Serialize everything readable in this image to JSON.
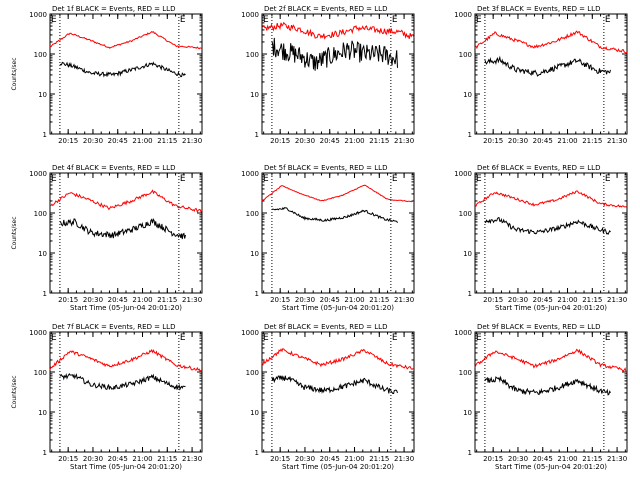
{
  "colors": {
    "events": "#000000",
    "lld": "#ff0000",
    "axis": "#000000",
    "background": "#ffffff"
  },
  "panel_markers": {
    "start_marker": "E",
    "end_marker": "E"
  },
  "chart_data": [
    {
      "type": "line",
      "title": "Det 1f BLACK = Events, RED = LLD",
      "xlabel": "",
      "ylabel": "Counts/sec",
      "yscale": "log",
      "ylim": [
        1,
        1000
      ],
      "xlim_min": [
        1204,
        1296
      ],
      "x_ticks": [
        "20:15",
        "20:30",
        "20:45",
        "21:00",
        "21:15",
        "21:30"
      ],
      "y_ticks": [
        "1",
        "10",
        "100",
        "1000"
      ],
      "marker_lines_min": [
        1210,
        1282
      ],
      "series": [
        {
          "name": "Events",
          "color": "#000000",
          "x_min": [
            1210,
            1219,
            1229,
            1242,
            1255,
            1266,
            1278,
            1286
          ],
          "values": [
            60,
            48,
            33,
            30,
            42,
            58,
            35,
            28
          ],
          "noise": 0.05
        },
        {
          "name": "LLD",
          "color": "#ff0000",
          "x_min": [
            1204,
            1216,
            1227,
            1240,
            1253,
            1266,
            1280,
            1296
          ],
          "values": [
            150,
            330,
            230,
            145,
            210,
            360,
            160,
            140
          ],
          "noise": 0.02
        }
      ]
    },
    {
      "type": "line",
      "title": "Det 2f BLACK = Events, RED = LLD",
      "xlabel": "",
      "ylabel": "",
      "yscale": "log",
      "ylim": [
        1,
        1000
      ],
      "xlim_min": [
        1204,
        1296
      ],
      "x_ticks": [
        "20:15",
        "20:30",
        "20:45",
        "21:00",
        "21:15",
        "21:30"
      ],
      "y_ticks": [
        "1",
        "10",
        "100",
        "1000"
      ],
      "marker_lines_min": [
        1210,
        1282
      ],
      "series": [
        {
          "name": "Events",
          "color": "#000000",
          "x_min": [
            1210,
            1218,
            1227,
            1236,
            1245,
            1256,
            1266,
            1278,
            1286
          ],
          "values": [
            160,
            120,
            90,
            60,
            85,
            130,
            100,
            95,
            75
          ],
          "noise": 0.25
        },
        {
          "name": "LLD",
          "color": "#ff0000",
          "x_min": [
            1204,
            1216,
            1227,
            1238,
            1250,
            1262,
            1274,
            1286,
            1296
          ],
          "values": [
            420,
            520,
            420,
            280,
            320,
            450,
            390,
            360,
            260
          ],
          "noise": 0.08
        }
      ]
    },
    {
      "type": "line",
      "title": "Det 3f BLACK = Events, RED = LLD",
      "xlabel": "",
      "ylabel": "",
      "yscale": "log",
      "ylim": [
        1,
        1000
      ],
      "xlim_min": [
        1204,
        1296
      ],
      "x_ticks": [
        "20:15",
        "20:30",
        "20:45",
        "21:00",
        "21:15",
        "21:30"
      ],
      "y_ticks": [
        "1",
        "10",
        "100",
        "1000"
      ],
      "marker_lines_min": [
        1210,
        1282
      ],
      "series": [
        {
          "name": "Events",
          "color": "#000000",
          "x_min": [
            1210,
            1219,
            1229,
            1242,
            1255,
            1266,
            1278,
            1286
          ],
          "values": [
            62,
            70,
            40,
            33,
            48,
            68,
            38,
            35
          ],
          "noise": 0.07
        },
        {
          "name": "LLD",
          "color": "#ff0000",
          "x_min": [
            1204,
            1216,
            1227,
            1240,
            1253,
            1266,
            1280,
            1296
          ],
          "values": [
            140,
            330,
            230,
            150,
            210,
            360,
            150,
            115
          ],
          "noise": 0.04
        }
      ]
    },
    {
      "type": "line",
      "title": "Det 4f BLACK = Events, RED = LLD",
      "xlabel": "Start Time (05-Jun-04 20:01:20)",
      "ylabel": "Counts/sec",
      "yscale": "log",
      "ylim": [
        1,
        1000
      ],
      "xlim_min": [
        1204,
        1296
      ],
      "x_ticks": [
        "20:15",
        "20:30",
        "20:45",
        "21:00",
        "21:15",
        "21:30"
      ],
      "y_ticks": [
        "1",
        "10",
        "100",
        "1000"
      ],
      "marker_lines_min": [
        1210,
        1282
      ],
      "series": [
        {
          "name": "Events",
          "color": "#000000",
          "x_min": [
            1210,
            1219,
            1229,
            1242,
            1255,
            1266,
            1278,
            1286
          ],
          "values": [
            55,
            60,
            32,
            28,
            40,
            62,
            32,
            25
          ],
          "noise": 0.08
        },
        {
          "name": "LLD",
          "color": "#ff0000",
          "x_min": [
            1204,
            1216,
            1227,
            1240,
            1253,
            1266,
            1280,
            1296
          ],
          "values": [
            150,
            320,
            220,
            130,
            200,
            340,
            150,
            110
          ],
          "noise": 0.04
        }
      ]
    },
    {
      "type": "line",
      "title": "Det 5f BLACK = Events, RED = LLD",
      "xlabel": "Start Time (05-Jun-04 20:01:20)",
      "ylabel": "",
      "yscale": "log",
      "ylim": [
        1,
        1000
      ],
      "xlim_min": [
        1204,
        1296
      ],
      "x_ticks": [
        "20:15",
        "20:30",
        "20:45",
        "21:00",
        "21:15",
        "21:30"
      ],
      "y_ticks": [
        "1",
        "10",
        "100",
        "1000"
      ],
      "marker_lines_min": [
        1210,
        1282
      ],
      "series": [
        {
          "name": "Events",
          "color": "#000000",
          "x_min": [
            1210,
            1219,
            1229,
            1242,
            1255,
            1266,
            1278,
            1286
          ],
          "values": [
            120,
            130,
            75,
            65,
            80,
            115,
            70,
            60
          ],
          "noise": 0.03
        },
        {
          "name": "LLD",
          "color": "#ff0000",
          "x_min": [
            1204,
            1216,
            1227,
            1240,
            1253,
            1266,
            1280,
            1296
          ],
          "values": [
            200,
            480,
            310,
            200,
            280,
            500,
            220,
            190
          ],
          "noise": 0.01
        }
      ]
    },
    {
      "type": "line",
      "title": "Det 6f BLACK = Events, RED = LLD",
      "xlabel": "Start Time (05-Jun-04 20:01:20)",
      "ylabel": "",
      "yscale": "log",
      "ylim": [
        1,
        1000
      ],
      "xlim_min": [
        1204,
        1296
      ],
      "x_ticks": [
        "20:15",
        "20:30",
        "20:45",
        "21:00",
        "21:15",
        "21:30"
      ],
      "y_ticks": [
        "1",
        "10",
        "100",
        "1000"
      ],
      "marker_lines_min": [
        1210,
        1282
      ],
      "series": [
        {
          "name": "Events",
          "color": "#000000",
          "x_min": [
            1210,
            1219,
            1229,
            1242,
            1255,
            1266,
            1278,
            1286
          ],
          "values": [
            65,
            68,
            38,
            33,
            42,
            62,
            40,
            32
          ],
          "noise": 0.06
        },
        {
          "name": "LLD",
          "color": "#ff0000",
          "x_min": [
            1204,
            1216,
            1227,
            1240,
            1253,
            1266,
            1280,
            1296
          ],
          "values": [
            150,
            330,
            240,
            160,
            210,
            350,
            170,
            140
          ],
          "noise": 0.03
        }
      ]
    },
    {
      "type": "line",
      "title": "Det 7f BLACK = Events, RED = LLD",
      "xlabel": "Start Time (05-Jun-04 20:01:20)",
      "ylabel": "Counts/sec",
      "yscale": "log",
      "ylim": [
        1,
        1000
      ],
      "xlim_min": [
        1204,
        1296
      ],
      "x_ticks": [
        "20:15",
        "20:30",
        "20:45",
        "21:00",
        "21:15",
        "21:30"
      ],
      "y_ticks": [
        "1",
        "10",
        "100",
        "1000"
      ],
      "marker_lines_min": [
        1210,
        1282
      ],
      "series": [
        {
          "name": "Events",
          "color": "#000000",
          "x_min": [
            1210,
            1219,
            1229,
            1242,
            1255,
            1266,
            1278,
            1286
          ],
          "values": [
            75,
            80,
            48,
            40,
            52,
            75,
            45,
            40
          ],
          "noise": 0.06
        },
        {
          "name": "LLD",
          "color": "#ff0000",
          "x_min": [
            1204,
            1216,
            1227,
            1240,
            1253,
            1266,
            1280,
            1296
          ],
          "values": [
            120,
            330,
            230,
            140,
            200,
            340,
            150,
            110
          ],
          "noise": 0.04
        }
      ]
    },
    {
      "type": "line",
      "title": "Det 8f BLACK = Events, RED = LLD",
      "xlabel": "Start Time (05-Jun-04 20:01:20)",
      "ylabel": "",
      "yscale": "log",
      "ylim": [
        1,
        1000
      ],
      "xlim_min": [
        1204,
        1296
      ],
      "x_ticks": [
        "20:15",
        "20:30",
        "20:45",
        "21:00",
        "21:15",
        "21:30"
      ],
      "y_ticks": [
        "1",
        "10",
        "100",
        "1000"
      ],
      "marker_lines_min": [
        1210,
        1282
      ],
      "series": [
        {
          "name": "Events",
          "color": "#000000",
          "x_min": [
            1210,
            1219,
            1229,
            1242,
            1255,
            1266,
            1278,
            1286
          ],
          "values": [
            65,
            72,
            42,
            34,
            45,
            62,
            36,
            30
          ],
          "noise": 0.07
        },
        {
          "name": "LLD",
          "color": "#ff0000",
          "x_min": [
            1204,
            1216,
            1227,
            1240,
            1253,
            1266,
            1280,
            1296
          ],
          "values": [
            160,
            360,
            240,
            150,
            210,
            350,
            160,
            120
          ],
          "noise": 0.04
        }
      ]
    },
    {
      "type": "line",
      "title": "Det 9f BLACK = Events, RED = LLD",
      "xlabel": "Start Time (05-Jun-04 20:01:20)",
      "ylabel": "",
      "yscale": "log",
      "ylim": [
        1,
        1000
      ],
      "xlim_min": [
        1204,
        1296
      ],
      "x_ticks": [
        "20:15",
        "20:30",
        "20:45",
        "21:00",
        "21:15",
        "21:30"
      ],
      "y_ticks": [
        "1",
        "10",
        "100",
        "1000"
      ],
      "marker_lines_min": [
        1210,
        1282
      ],
      "series": [
        {
          "name": "Events",
          "color": "#000000",
          "x_min": [
            1210,
            1219,
            1229,
            1242,
            1255,
            1266,
            1278,
            1286
          ],
          "values": [
            60,
            65,
            35,
            30,
            42,
            62,
            36,
            28
          ],
          "noise": 0.07
        },
        {
          "name": "LLD",
          "color": "#ff0000",
          "x_min": [
            1204,
            1216,
            1227,
            1240,
            1253,
            1266,
            1280,
            1296
          ],
          "values": [
            140,
            330,
            230,
            140,
            200,
            350,
            150,
            110
          ],
          "noise": 0.04
        }
      ]
    }
  ]
}
